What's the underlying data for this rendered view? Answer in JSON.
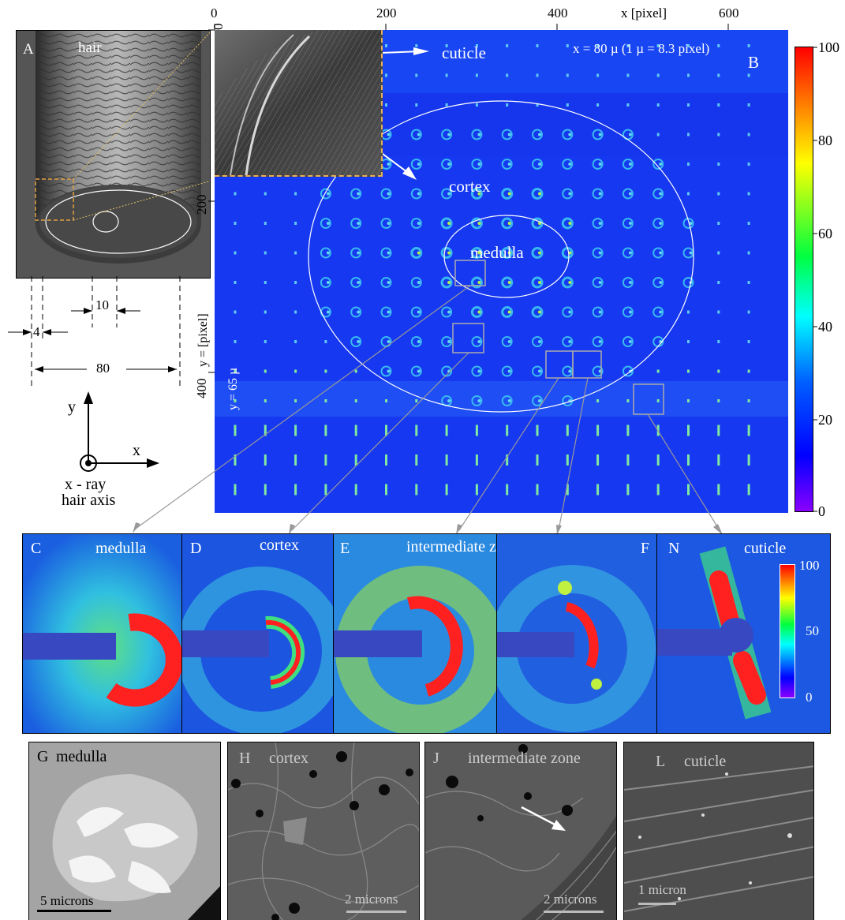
{
  "panel_a": {
    "letter": "A",
    "title": "hair"
  },
  "dimensions": {
    "d10": "10",
    "d4": "4",
    "d80": "80"
  },
  "axes_icon": {
    "y": "y",
    "x": "x",
    "beam_line1": "x - ray",
    "beam_line2": "hair axis"
  },
  "panel_b": {
    "letter": "B",
    "x_axis_label": "x [pixel]",
    "y_axis_label": "y = [pixel]",
    "x_ticks": [
      "0",
      "200",
      "400",
      "600"
    ],
    "y_ticks": [
      "0",
      "200",
      "400"
    ],
    "scale_note": "x = 80 µ (1 µ = 8.3 pixel)",
    "y_note": "y = 65 µ",
    "cuticle_label": "cuticle",
    "cortex_label": "cortex",
    "medulla_label": "medulla"
  },
  "colorbar_main": {
    "ticks": [
      "100",
      "80",
      "60",
      "40",
      "20",
      "0"
    ]
  },
  "colorbar_inset": {
    "ticks": [
      "100",
      "50",
      "0"
    ]
  },
  "pattern_panels": [
    {
      "letter": "C",
      "title": "medulla"
    },
    {
      "letter": "D",
      "title": "cortex"
    },
    {
      "letter": "E",
      "title": "intermediate zone"
    },
    {
      "letter": "F",
      "title": ""
    },
    {
      "letter": "N",
      "title": "cuticle"
    }
  ],
  "tem_panels": [
    {
      "letter": "G",
      "title": "medulla",
      "scale": "5 microns"
    },
    {
      "letter": "H",
      "title": "cortex",
      "scale": "2 microns"
    },
    {
      "letter": "J",
      "title": "intermediate zone",
      "scale": "2 microns"
    },
    {
      "letter": "L",
      "title": "cuticle",
      "scale": "1 micron"
    }
  ],
  "colors": {
    "map_background": "#1638f0",
    "colormap": [
      "#8a00ff",
      "#0000ff",
      "#00c8ff",
      "#00ff40",
      "#ffff00",
      "#ff0000"
    ]
  }
}
